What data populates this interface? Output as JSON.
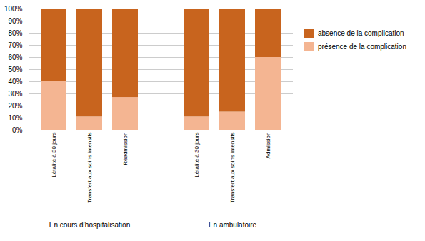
{
  "chart_data": {
    "type": "bar",
    "stacked": true,
    "categories": [
      "Létalité à 30 jours",
      "Transfert aux soins intensifs",
      "Réadmission",
      "Létalité à 30 jours",
      "Transfert aux soins intensifs",
      "Admission"
    ],
    "group_labels": [
      "En cours d’hospitalisation",
      "En ambulatoire"
    ],
    "series": [
      {
        "name": "présence de la complication",
        "color": "#F4B592",
        "values": [
          40,
          11,
          27,
          11,
          15,
          60
        ]
      },
      {
        "name": "absence de la complication",
        "color": "#C8641E",
        "values": [
          60,
          89,
          73,
          89,
          85,
          40
        ]
      }
    ],
    "ylim": [
      0,
      100
    ],
    "yticks": [
      {
        "value": 0,
        "label": "0%"
      },
      {
        "value": 10,
        "label": "10%"
      },
      {
        "value": 20,
        "label": "20%"
      },
      {
        "value": 30,
        "label": "30%"
      },
      {
        "value": 40,
        "label": "40%"
      },
      {
        "value": 50,
        "label": "50%"
      },
      {
        "value": 60,
        "label": "60%"
      },
      {
        "value": 70,
        "label": "70%"
      },
      {
        "value": 80,
        "label": "80%"
      },
      {
        "value": 90,
        "label": "90%"
      },
      {
        "value": 100,
        "label": "100%"
      }
    ],
    "grid": true,
    "legend": "right"
  }
}
